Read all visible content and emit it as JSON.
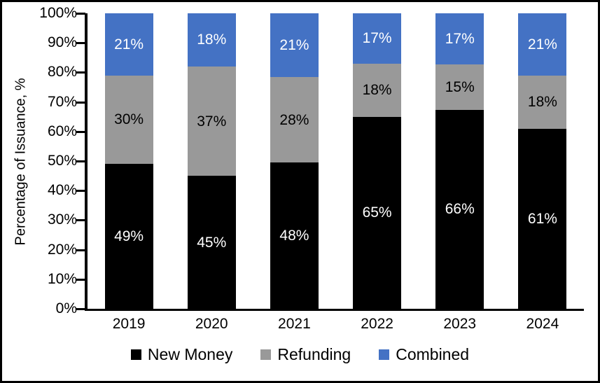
{
  "chart_data": {
    "type": "bar",
    "stacked": true,
    "title": "",
    "xlabel": "",
    "ylabel": "Percentage of Issuance, %",
    "categories": [
      "2019",
      "2020",
      "2021",
      "2022",
      "2023",
      "2024"
    ],
    "series": [
      {
        "name": "New Money",
        "color": "#000000",
        "label_color": "#ffffff",
        "values": [
          49,
          45,
          48,
          65,
          66,
          61
        ]
      },
      {
        "name": "Refunding",
        "color": "#999999",
        "label_color": "#000000",
        "values": [
          30,
          37,
          28,
          18,
          15,
          18
        ]
      },
      {
        "name": "Combined",
        "color": "#4472C4",
        "label_color": "#ffffff",
        "values": [
          21,
          18,
          21,
          17,
          17,
          21
        ]
      }
    ],
    "data_label_suffix": "%",
    "ylim": [
      0,
      100
    ],
    "y_tick_step": 10,
    "y_tick_labels": [
      "0%",
      "10%",
      "20%",
      "30%",
      "40%",
      "50%",
      "60%",
      "70%",
      "80%",
      "90%",
      "100%"
    ],
    "grid": false,
    "legend_position": "bottom",
    "axis_color": "#000000",
    "background_color": "#ffffff"
  }
}
